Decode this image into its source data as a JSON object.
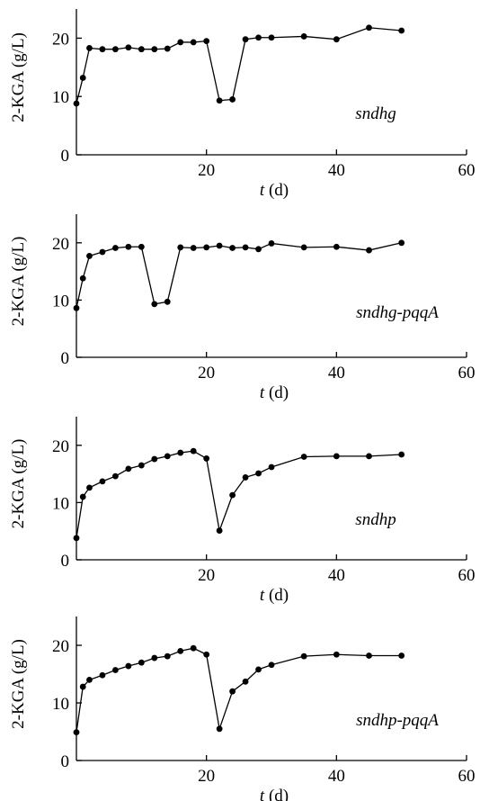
{
  "chart_data": [
    {
      "type": "line",
      "strain": "sndhg",
      "xlabel_var": "t",
      "xlabel_unit": " (d)",
      "ylabel": "2-KGA (g/L)",
      "xlim": [
        0,
        60
      ],
      "ylim": [
        0,
        25
      ],
      "xticks": [
        20,
        40,
        60
      ],
      "yticks": [
        0,
        10,
        20
      ],
      "grid": false,
      "x": [
        0,
        1,
        2,
        4,
        6,
        8,
        10,
        12,
        14,
        16,
        18,
        20,
        22,
        24,
        26,
        28,
        30,
        35,
        40,
        45,
        50
      ],
      "y": [
        8.8,
        13.2,
        18.3,
        18.1,
        18.1,
        18.4,
        18.1,
        18.1,
        18.2,
        19.3,
        19.3,
        19.5,
        9.3,
        9.5,
        19.8,
        20.1,
        20.1,
        20.3,
        19.8,
        21.8,
        21.3
      ]
    },
    {
      "type": "line",
      "strain": "sndhg-pqqA",
      "xlabel_var": "t",
      "xlabel_unit": " (d)",
      "ylabel": "2-KGA (g/L)",
      "xlim": [
        0,
        60
      ],
      "ylim": [
        0,
        25
      ],
      "xticks": [
        20,
        40,
        60
      ],
      "yticks": [
        0,
        10,
        20
      ],
      "grid": false,
      "x": [
        0,
        1,
        2,
        4,
        6,
        8,
        10,
        12,
        14,
        16,
        18,
        20,
        22,
        24,
        26,
        28,
        30,
        35,
        40,
        45,
        50
      ],
      "y": [
        8.6,
        13.8,
        17.7,
        18.4,
        19.1,
        19.3,
        19.3,
        9.3,
        9.7,
        19.2,
        19.1,
        19.2,
        19.5,
        19.1,
        19.2,
        18.9,
        19.9,
        19.2,
        19.3,
        18.7,
        20.0
      ]
    },
    {
      "type": "line",
      "strain": "sndhp",
      "xlabel_var": "t",
      "xlabel_unit": " (d)",
      "ylabel": "2-KGA (g/L)",
      "xlim": [
        0,
        60
      ],
      "ylim": [
        0,
        25
      ],
      "xticks": [
        20,
        40,
        60
      ],
      "yticks": [
        0,
        10,
        20
      ],
      "grid": false,
      "x": [
        0,
        1,
        2,
        4,
        6,
        8,
        10,
        12,
        14,
        16,
        18,
        20,
        22,
        24,
        26,
        28,
        30,
        35,
        40,
        45,
        50
      ],
      "y": [
        3.8,
        11.0,
        12.6,
        13.7,
        14.6,
        15.9,
        16.5,
        17.6,
        18.1,
        18.7,
        19.0,
        17.7,
        5.1,
        11.3,
        14.4,
        15.1,
        16.2,
        18.0,
        18.1,
        18.1,
        18.4
      ]
    },
    {
      "type": "line",
      "strain": "sndhp-pqqA",
      "xlabel_var": "t",
      "xlabel_unit": " (d)",
      "ylabel": "2-KGA (g/L)",
      "xlim": [
        0,
        60
      ],
      "ylim": [
        0,
        25
      ],
      "xticks": [
        20,
        40,
        60
      ],
      "yticks": [
        0,
        10,
        20
      ],
      "grid": false,
      "x": [
        0,
        1,
        2,
        4,
        6,
        8,
        10,
        12,
        14,
        16,
        18,
        20,
        22,
        24,
        26,
        28,
        30,
        35,
        40,
        45,
        50
      ],
      "y": [
        4.9,
        12.8,
        14.0,
        14.8,
        15.7,
        16.4,
        17.0,
        17.8,
        18.1,
        19.0,
        19.5,
        18.4,
        5.5,
        12.0,
        13.7,
        15.8,
        16.6,
        18.1,
        18.4,
        18.2,
        18.2
      ]
    }
  ]
}
